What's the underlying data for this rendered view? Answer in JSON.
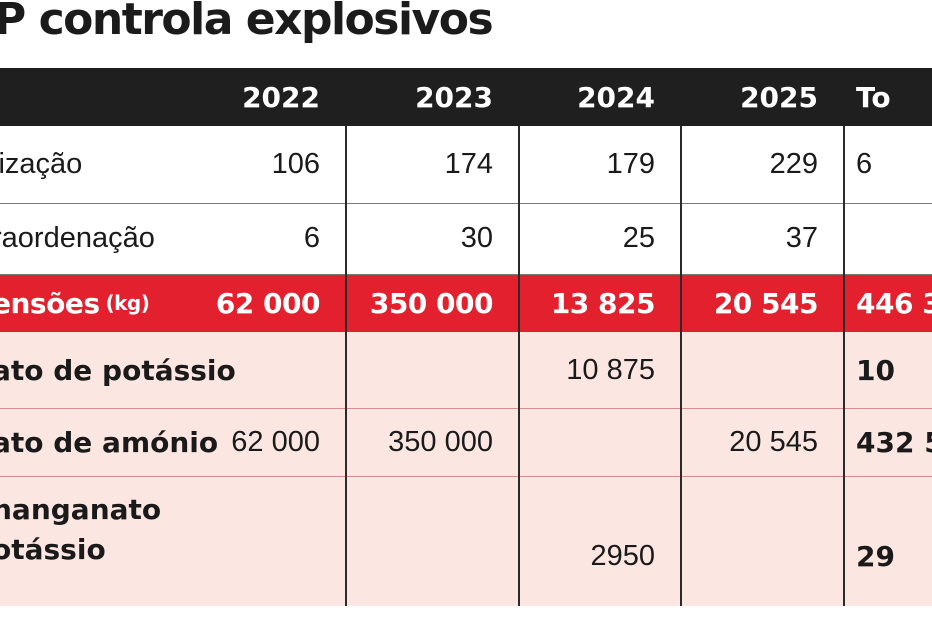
{
  "title": "P controla explosivos",
  "header": {
    "label": "",
    "years": [
      "2022",
      "2023",
      "2024",
      "2025"
    ],
    "total": "To"
  },
  "rows": [
    {
      "label": "lização",
      "values": [
        "106",
        "174",
        "179",
        "229"
      ],
      "total": "6"
    },
    {
      "label": "raordenação",
      "values": [
        "6",
        "30",
        "25",
        "37"
      ],
      "total": ""
    },
    {
      "label": "ensões",
      "unit": "(kg)",
      "values": [
        "62 000",
        "350 000",
        "13 825",
        "20 545"
      ],
      "total": "446 3"
    },
    {
      "label": "ato de potássio",
      "values": [
        "",
        "",
        "10 875",
        ""
      ],
      "total": "10"
    },
    {
      "label": "ato de amónio",
      "values": [
        "62 000",
        "350 000",
        "",
        "20 545"
      ],
      "total": "432 5"
    },
    {
      "label": "nanganato\notássio",
      "values": [
        "",
        "",
        "2950",
        ""
      ],
      "total": "29"
    }
  ],
  "colors": {
    "header_bg": "#1f1f1f",
    "highlight_red": "#e3202e",
    "pink_bg": "#fbe6e1"
  }
}
